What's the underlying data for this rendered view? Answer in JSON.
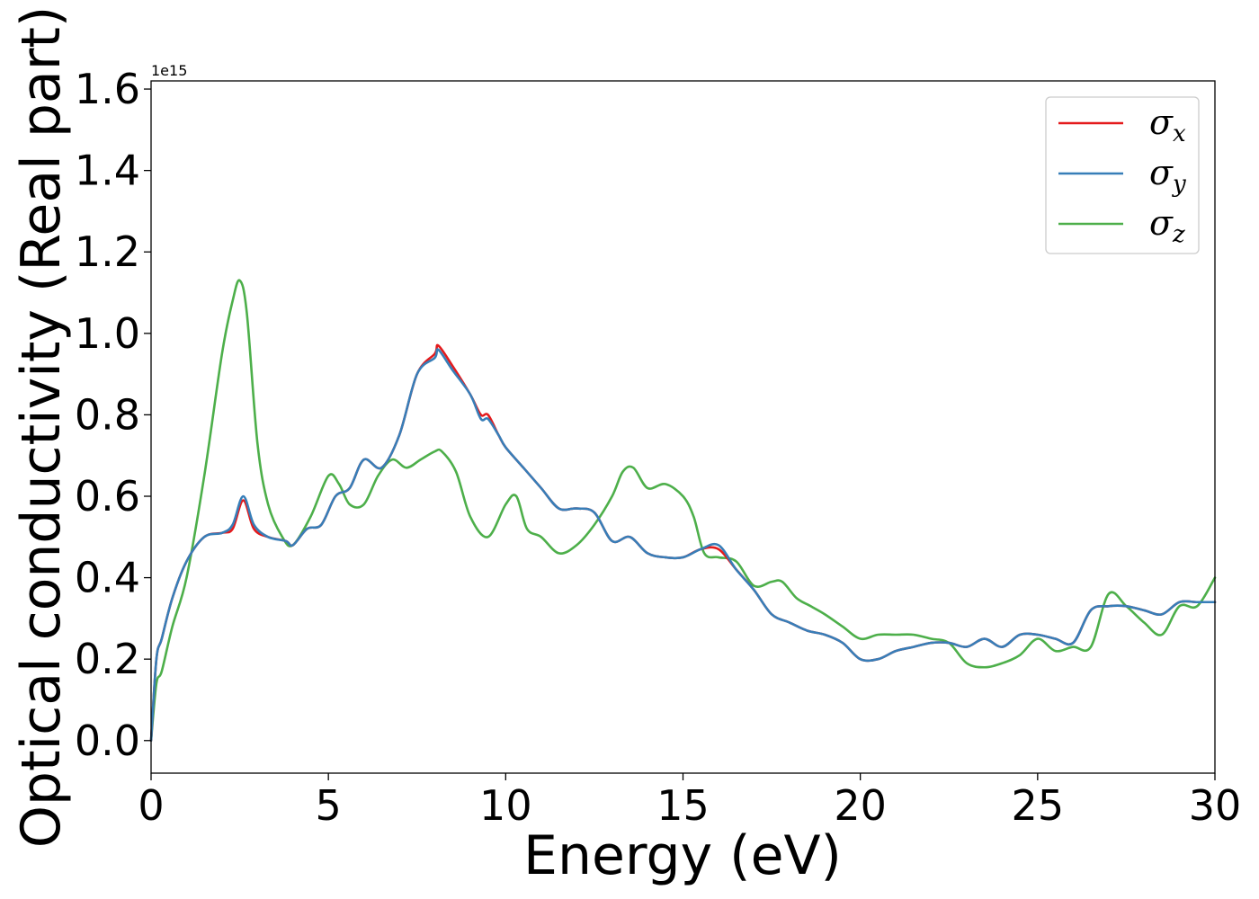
{
  "chart_data": {
    "type": "line",
    "title": "",
    "xlabel": "Energy (eV)",
    "ylabel": "Optical conductivity (Real part)",
    "offset_text": "1e15",
    "xlim": [
      0,
      30
    ],
    "ylim": [
      -0.08,
      1.62
    ],
    "xticks": [
      0,
      5,
      10,
      15,
      20,
      25,
      30
    ],
    "xtick_labels": [
      "0",
      "5",
      "10",
      "15",
      "20",
      "25",
      "30"
    ],
    "yticks": [
      0.0,
      0.2,
      0.4,
      0.6,
      0.8,
      1.0,
      1.2,
      1.4,
      1.6
    ],
    "ytick_labels": [
      "0.0",
      "0.2",
      "0.4",
      "0.6",
      "0.8",
      "1.0",
      "1.2",
      "1.4",
      "1.6"
    ],
    "grid": false,
    "legend_position": "top-right",
    "series": [
      {
        "name": "σx",
        "symbol": "σ",
        "subscript": "x",
        "color": "#e41a1c",
        "x": [
          0,
          0.15,
          0.3,
          0.6,
          1.0,
          1.5,
          2.0,
          2.3,
          2.6,
          2.9,
          3.3,
          3.8,
          4.0,
          4.4,
          4.8,
          5.2,
          5.6,
          6.0,
          6.5,
          7.0,
          7.5,
          8.0,
          8.1,
          8.5,
          9.0,
          9.3,
          9.5,
          9.8,
          10.0,
          10.5,
          11.0,
          11.5,
          12.0,
          12.5,
          13.0,
          13.5,
          14.0,
          14.5,
          15.0,
          15.5,
          16.0,
          16.5,
          17.0,
          17.5,
          18.0,
          18.5,
          19.0,
          19.5,
          20.0,
          20.5,
          21.0,
          21.5,
          22.0,
          22.5,
          23.0,
          23.5,
          24.0,
          24.5,
          25.0,
          25.5,
          26.0,
          26.5,
          27.0,
          27.5,
          28.0,
          28.5,
          29.0,
          29.5,
          30.0
        ],
        "y": [
          0.0,
          0.2,
          0.25,
          0.35,
          0.44,
          0.5,
          0.51,
          0.52,
          0.59,
          0.52,
          0.5,
          0.49,
          0.48,
          0.52,
          0.53,
          0.6,
          0.62,
          0.69,
          0.67,
          0.75,
          0.9,
          0.95,
          0.97,
          0.92,
          0.85,
          0.8,
          0.8,
          0.75,
          0.72,
          0.67,
          0.62,
          0.57,
          0.57,
          0.56,
          0.49,
          0.5,
          0.46,
          0.45,
          0.45,
          0.47,
          0.47,
          0.42,
          0.37,
          0.31,
          0.29,
          0.27,
          0.26,
          0.24,
          0.2,
          0.2,
          0.22,
          0.23,
          0.24,
          0.24,
          0.23,
          0.25,
          0.23,
          0.26,
          0.26,
          0.25,
          0.24,
          0.32,
          0.33,
          0.33,
          0.32,
          0.31,
          0.34,
          0.34,
          0.34
        ]
      },
      {
        "name": "σy",
        "symbol": "σ",
        "subscript": "y",
        "color": "#377eb8",
        "x": [
          0,
          0.15,
          0.3,
          0.6,
          1.0,
          1.5,
          2.0,
          2.3,
          2.6,
          2.9,
          3.3,
          3.8,
          4.0,
          4.4,
          4.8,
          5.2,
          5.6,
          6.0,
          6.5,
          7.0,
          7.5,
          8.0,
          8.1,
          8.5,
          9.0,
          9.3,
          9.5,
          9.8,
          10.0,
          10.5,
          11.0,
          11.5,
          12.0,
          12.5,
          13.0,
          13.5,
          14.0,
          14.5,
          15.0,
          15.5,
          16.0,
          16.5,
          17.0,
          17.5,
          18.0,
          18.5,
          19.0,
          19.5,
          20.0,
          20.5,
          21.0,
          21.5,
          22.0,
          22.5,
          23.0,
          23.5,
          24.0,
          24.5,
          25.0,
          25.5,
          26.0,
          26.5,
          27.0,
          27.5,
          28.0,
          28.5,
          29.0,
          29.5,
          30.0
        ],
        "y": [
          0.0,
          0.2,
          0.25,
          0.35,
          0.44,
          0.5,
          0.51,
          0.53,
          0.6,
          0.53,
          0.5,
          0.49,
          0.48,
          0.52,
          0.53,
          0.6,
          0.62,
          0.69,
          0.67,
          0.75,
          0.9,
          0.94,
          0.96,
          0.91,
          0.85,
          0.79,
          0.79,
          0.75,
          0.72,
          0.67,
          0.62,
          0.57,
          0.57,
          0.56,
          0.49,
          0.5,
          0.46,
          0.45,
          0.45,
          0.47,
          0.48,
          0.42,
          0.37,
          0.31,
          0.29,
          0.27,
          0.26,
          0.24,
          0.2,
          0.2,
          0.22,
          0.23,
          0.24,
          0.24,
          0.23,
          0.25,
          0.23,
          0.26,
          0.26,
          0.25,
          0.24,
          0.32,
          0.33,
          0.33,
          0.32,
          0.31,
          0.34,
          0.34,
          0.34
        ]
      },
      {
        "name": "σz",
        "symbol": "σ",
        "subscript": "z",
        "color": "#4daf4a",
        "x": [
          0,
          0.15,
          0.3,
          0.6,
          1.0,
          1.5,
          2.0,
          2.3,
          2.5,
          2.7,
          3.0,
          3.3,
          3.7,
          4.0,
          4.5,
          5.0,
          5.3,
          5.6,
          6.0,
          6.4,
          6.8,
          7.2,
          7.6,
          8.0,
          8.2,
          8.6,
          9.0,
          9.5,
          10.0,
          10.3,
          10.6,
          11.0,
          11.5,
          12.0,
          12.5,
          13.0,
          13.3,
          13.6,
          14.0,
          14.5,
          15.0,
          15.3,
          15.6,
          16.0,
          16.5,
          17.0,
          17.5,
          17.8,
          18.2,
          18.6,
          19.0,
          19.5,
          20.0,
          20.5,
          21.0,
          21.5,
          22.0,
          22.5,
          23.0,
          23.5,
          24.0,
          24.5,
          25.0,
          25.5,
          26.0,
          26.5,
          27.0,
          27.5,
          28.0,
          28.5,
          29.0,
          29.5,
          30.0
        ],
        "y": [
          0.0,
          0.14,
          0.17,
          0.28,
          0.4,
          0.65,
          0.95,
          1.08,
          1.13,
          1.05,
          0.73,
          0.58,
          0.5,
          0.48,
          0.55,
          0.65,
          0.63,
          0.58,
          0.58,
          0.65,
          0.69,
          0.67,
          0.69,
          0.71,
          0.71,
          0.66,
          0.55,
          0.5,
          0.58,
          0.6,
          0.52,
          0.5,
          0.46,
          0.48,
          0.53,
          0.6,
          0.66,
          0.67,
          0.62,
          0.63,
          0.6,
          0.55,
          0.46,
          0.45,
          0.44,
          0.38,
          0.39,
          0.39,
          0.35,
          0.33,
          0.31,
          0.28,
          0.25,
          0.26,
          0.26,
          0.26,
          0.25,
          0.24,
          0.19,
          0.18,
          0.19,
          0.21,
          0.25,
          0.22,
          0.23,
          0.23,
          0.36,
          0.33,
          0.29,
          0.26,
          0.33,
          0.33,
          0.4
        ]
      }
    ]
  }
}
